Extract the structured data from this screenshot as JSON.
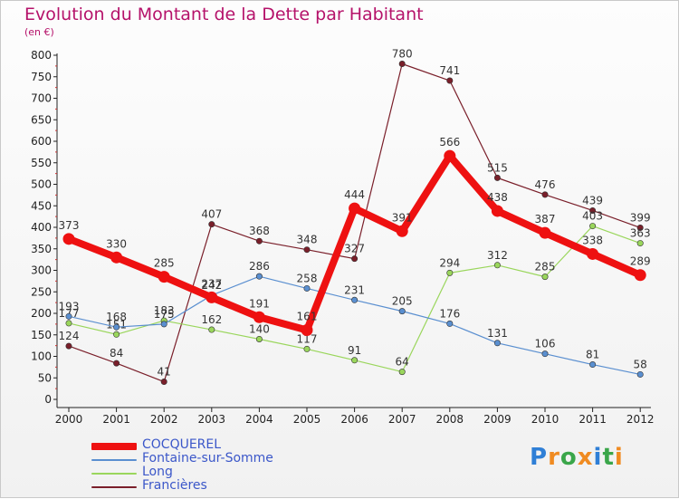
{
  "title": "Evolution du Montant de la Dette par Habitant",
  "subtitle": "(en €)",
  "logo": {
    "text": "Proxiti",
    "letter_colors": [
      "#2f7fd6",
      "#f08b21",
      "#3aa64a",
      "#f08b21",
      "#2f7fd6",
      "#3aa64a",
      "#f08b21"
    ]
  },
  "chart_data": {
    "type": "line",
    "x": [
      "2000",
      "2001",
      "2002",
      "2003",
      "2004",
      "2005",
      "2006",
      "2007",
      "2008",
      "2009",
      "2010",
      "2011",
      "2012"
    ],
    "ylim": [
      0,
      800
    ],
    "yticks": [
      "0",
      "50",
      "100",
      "150",
      "200",
      "250",
      "300",
      "350",
      "400",
      "450",
      "500",
      "550",
      "600",
      "650",
      "700",
      "750",
      "800"
    ],
    "grid": false,
    "legend_position": "bottom-left",
    "series": [
      {
        "name": "Francières",
        "color": "#7a1f2a",
        "values": [
          124,
          84,
          41,
          407,
          368,
          348,
          327,
          780,
          741,
          515,
          476,
          439,
          399
        ]
      },
      {
        "name": "Long",
        "color": "#9ad65c",
        "values": [
          177,
          151,
          183,
          162,
          140,
          117,
          91,
          64,
          294,
          312,
          285,
          403,
          363
        ]
      },
      {
        "name": "Fontaine-sur-Somme",
        "color": "#5a8fd0",
        "values": [
          193,
          168,
          175,
          242,
          286,
          258,
          231,
          205,
          176,
          131,
          106,
          81,
          58
        ]
      },
      {
        "name": "COCQUEREL",
        "color": "#ee1111",
        "values": [
          373,
          330,
          285,
          237,
          191,
          161,
          444,
          391,
          566,
          438,
          387,
          338,
          289
        ]
      }
    ]
  }
}
